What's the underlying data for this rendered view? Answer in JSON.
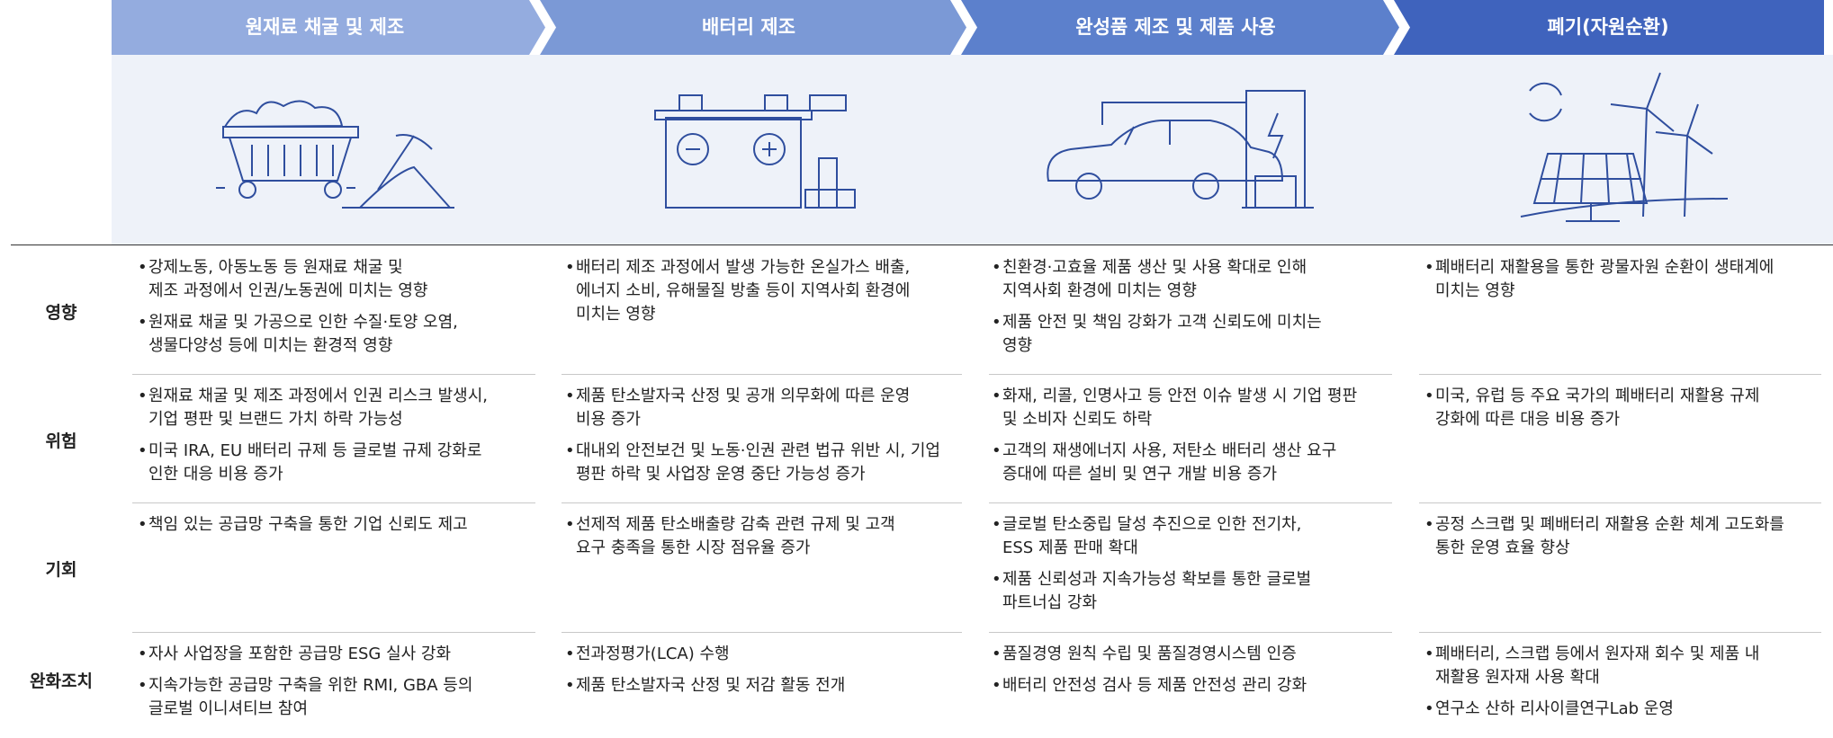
{
  "stages": [
    "원재료 채굴 및 제조",
    "배터리 제조",
    "완성품 제조 및 제품 사용",
    "폐기(자원순환)"
  ],
  "rows": [
    {
      "label": "영향",
      "cells": [
        [
          [
            "강제노동, 아동노동 등 원재료 채굴 및",
            "제조 과정에서 인권/노동권에 미치는 영향"
          ],
          [
            "원재료 채굴 및 가공으로 인한 수질·토양 오염,",
            "생물다양성 등에 미치는 환경적 영향"
          ]
        ],
        [
          [
            "배터리 제조 과정에서 발생 가능한 온실가스 배출,",
            "에너지 소비, 유해물질 방출 등이 지역사회 환경에",
            "미치는 영향"
          ]
        ],
        [
          [
            "친환경·고효율 제품 생산 및 사용 확대로 인해",
            "지역사회 환경에 미치는 영향"
          ],
          [
            "제품 안전 및 책임 강화가 고객 신뢰도에 미치는",
            "영향"
          ]
        ],
        [
          [
            "폐배터리 재활용을 통한 광물자원 순환이 생태계에",
            "미치는 영향"
          ]
        ]
      ]
    },
    {
      "label": "위험",
      "cells": [
        [
          [
            "원재료 채굴 및 제조 과정에서 인권 리스크 발생시,",
            "기업 평판 및 브랜드 가치 하락 가능성"
          ],
          [
            "미국 IRA, EU 배터리 규제 등 글로벌 규제 강화로",
            "인한 대응 비용 증가"
          ]
        ],
        [
          [
            "제품 탄소발자국 산정 및 공개 의무화에 따른 운영",
            "비용 증가"
          ],
          [
            "대내외 안전보건 및 노동·인권 관련 법규 위반 시, 기업",
            "평판 하락 및 사업장 운영 중단 가능성 증가"
          ]
        ],
        [
          [
            "화재, 리콜, 인명사고 등 안전 이슈 발생 시 기업 평판",
            "및 소비자 신뢰도 하락"
          ],
          [
            "고객의 재생에너지 사용, 저탄소 배터리 생산 요구",
            "증대에 따른 설비 및 연구 개발 비용 증가"
          ]
        ],
        [
          [
            "미국, 유럽 등 주요 국가의 폐배터리 재활용 규제",
            "강화에 따른 대응 비용 증가"
          ]
        ]
      ]
    },
    {
      "label": "기회",
      "cells": [
        [
          [
            "책임 있는 공급망 구축을 통한 기업 신뢰도 제고"
          ]
        ],
        [
          [
            "선제적 제품 탄소배출량 감축 관련 규제 및 고객",
            "요구 충족을 통한 시장 점유율 증가"
          ]
        ],
        [
          [
            "글로벌 탄소중립 달성 추진으로 인한 전기차,",
            "ESS 제품 판매 확대"
          ],
          [
            "제품 신뢰성과 지속가능성 확보를 통한 글로벌",
            "파트너십 강화"
          ]
        ],
        [
          [
            "공정 스크랩 및 폐배터리 재활용 순환 체계 고도화를",
            "통한 운영 효율 향상"
          ]
        ]
      ]
    },
    {
      "label": "완화조치",
      "cells": [
        [
          [
            "자사 사업장을 포함한 공급망 ESG 실사 강화"
          ],
          [
            "지속가능한 공급망 구축을 위한 RMI, GBA 등의",
            "글로벌 이니셔티브 참여"
          ]
        ],
        [
          [
            "전과정평가(LCA) 수행"
          ],
          [
            "제품 탄소발자국 산정 및 저감 활동 전개"
          ]
        ],
        [
          [
            "품질경영 원칙 수립 및 품질경영시스템 인증"
          ],
          [
            "배터리 안전성 검사 등 제품 안전성 관리 강화"
          ]
        ],
        [
          [
            "폐배터리, 스크랩 등에서 원자재 회수 및 제품 내",
            "재활용 원자재 사용 확대"
          ],
          [
            "연구소 산하 리사이클연구Lab 운영"
          ]
        ]
      ]
    }
  ]
}
